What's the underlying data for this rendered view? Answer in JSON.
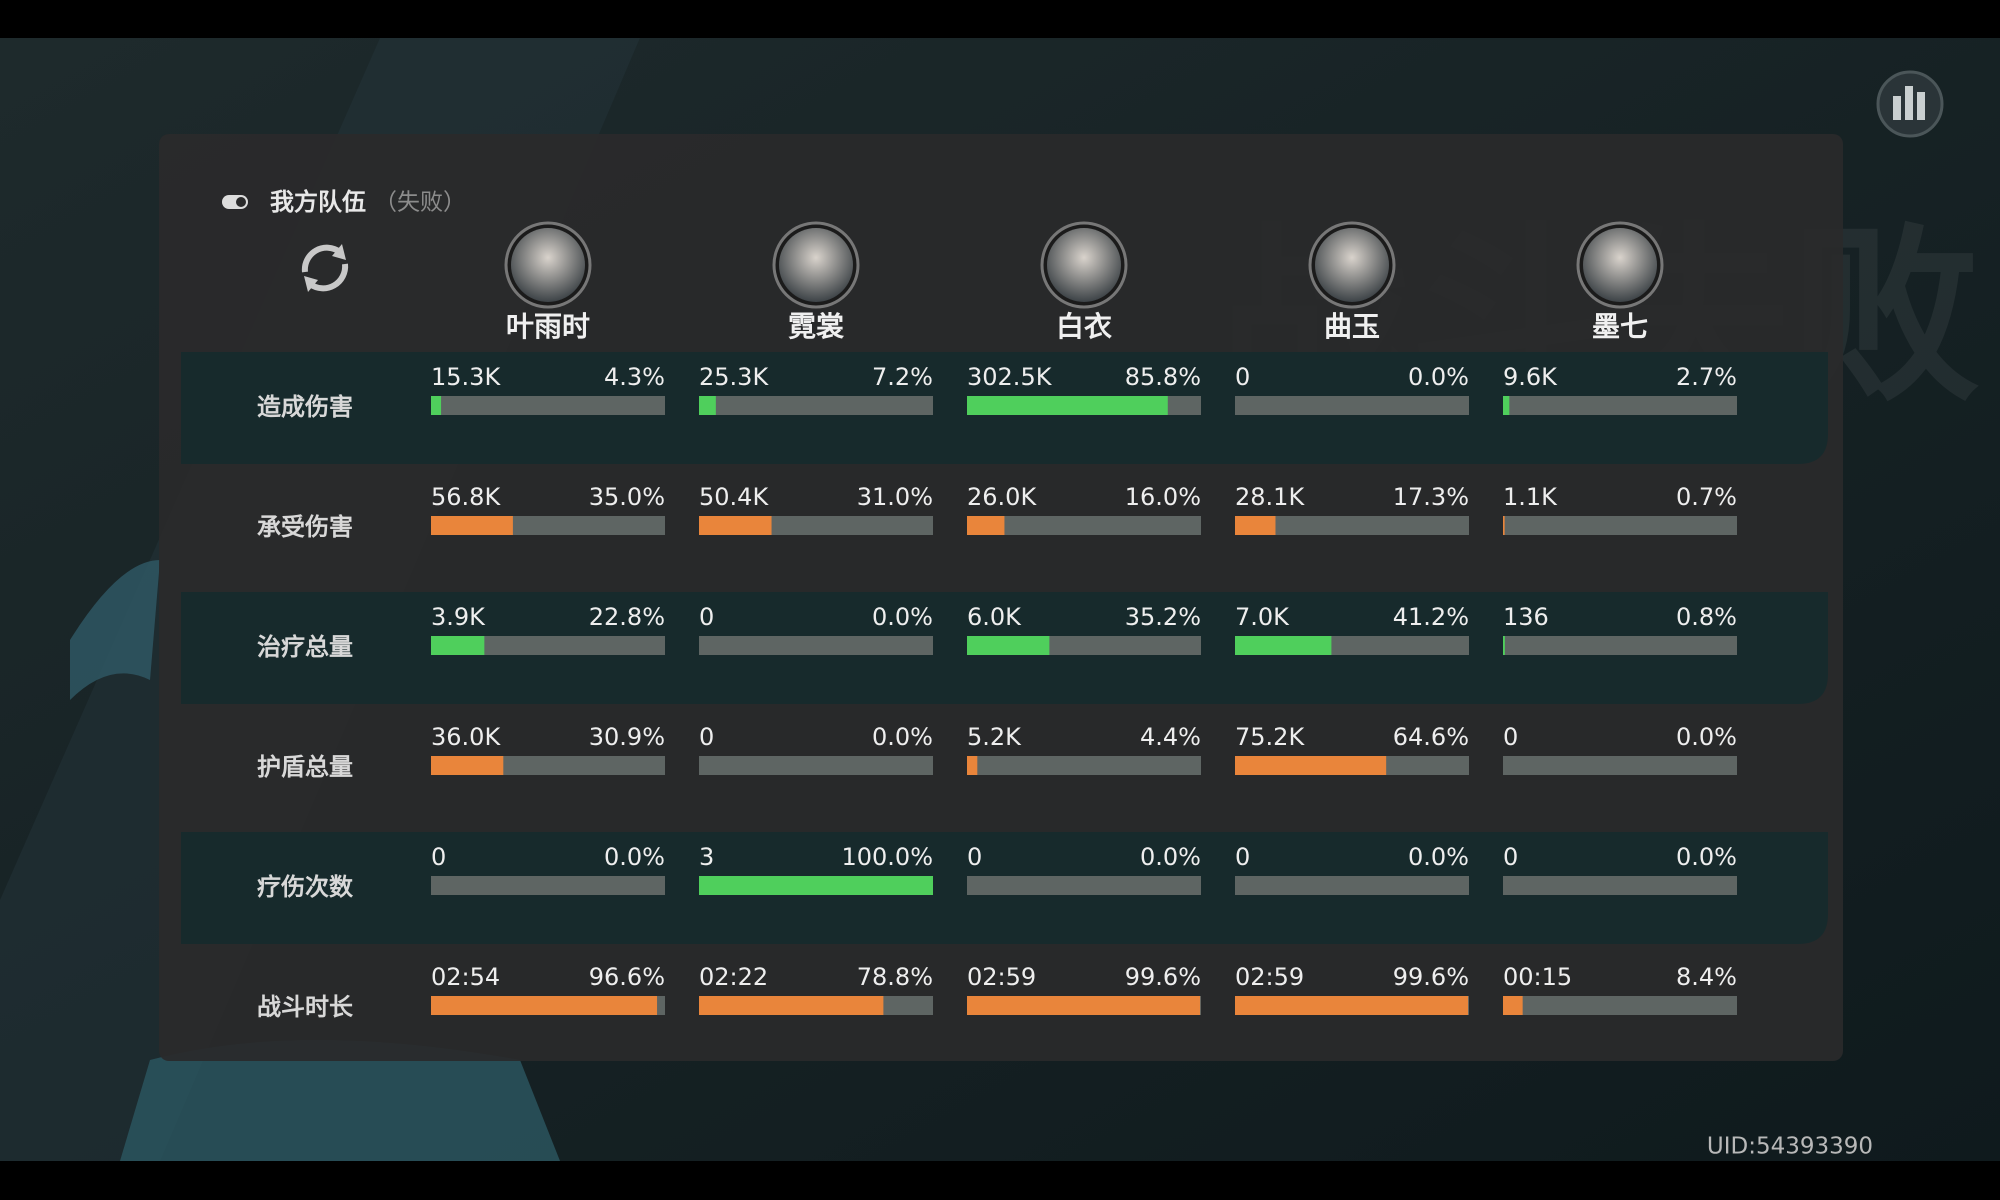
{
  "header": {
    "title": "我方队伍",
    "status": "（失败）"
  },
  "background_title": "战斗失败",
  "characters": [
    "叶雨时",
    "霓裳",
    "白衣",
    "曲玉",
    "墨七"
  ],
  "rows": [
    {
      "label": "造成伤害",
      "color": "#4fcf5c",
      "cells": [
        {
          "value": "15.3K",
          "share": {
            "value": 4.3,
            "label": "4.3%"
          }
        },
        {
          "value": "25.3K",
          "share": {
            "value": 7.2,
            "label": "7.2%"
          }
        },
        {
          "value": "302.5K",
          "share": {
            "value": 85.8,
            "label": "85.8%"
          }
        },
        {
          "value": "0",
          "share": {
            "value": 0,
            "label": "0.0%"
          }
        },
        {
          "value": "9.6K",
          "share": {
            "value": 2.7,
            "label": "2.7%"
          }
        }
      ]
    },
    {
      "label": "承受伤害",
      "color": "#e9853b",
      "cells": [
        {
          "value": "56.8K",
          "share": {
            "value": 35,
            "label": "35.0%"
          }
        },
        {
          "value": "50.4K",
          "share": {
            "value": 31,
            "label": "31.0%"
          }
        },
        {
          "value": "26.0K",
          "share": {
            "value": 16,
            "label": "16.0%"
          }
        },
        {
          "value": "28.1K",
          "share": {
            "value": 17.3,
            "label": "17.3%"
          }
        },
        {
          "value": "1.1K",
          "share": {
            "value": 0.7,
            "label": "0.7%"
          }
        }
      ]
    },
    {
      "label": "治疗总量",
      "color": "#4fcf5c",
      "cells": [
        {
          "value": "3.9K",
          "share": {
            "value": 22.8,
            "label": "22.8%"
          }
        },
        {
          "value": "0",
          "share": {
            "value": 0,
            "label": "0.0%"
          }
        },
        {
          "value": "6.0K",
          "share": {
            "value": 35.2,
            "label": "35.2%"
          }
        },
        {
          "value": "7.0K",
          "share": {
            "value": 41.2,
            "label": "41.2%"
          }
        },
        {
          "value": "136",
          "share": {
            "value": 0.8,
            "label": "0.8%"
          }
        }
      ]
    },
    {
      "label": "护盾总量",
      "color": "#e9853b",
      "cells": [
        {
          "value": "36.0K",
          "share": {
            "value": 30.9,
            "label": "30.9%"
          }
        },
        {
          "value": "0",
          "share": {
            "value": 0,
            "label": "0.0%"
          }
        },
        {
          "value": "5.2K",
          "share": {
            "value": 4.4,
            "label": "4.4%"
          }
        },
        {
          "value": "75.2K",
          "share": {
            "value": 64.6,
            "label": "64.6%"
          }
        },
        {
          "value": "0",
          "share": {
            "value": 0,
            "label": "0.0%"
          }
        }
      ]
    },
    {
      "label": "疗伤次数",
      "color": "#4fcf5c",
      "cells": [
        {
          "value": "0",
          "share": {
            "value": 0,
            "label": "0.0%"
          }
        },
        {
          "value": "3",
          "share": {
            "value": 100,
            "label": "100.0%"
          }
        },
        {
          "value": "0",
          "share": {
            "value": 0,
            "label": "0.0%"
          }
        },
        {
          "value": "0",
          "share": {
            "value": 0,
            "label": "0.0%"
          }
        },
        {
          "value": "0",
          "share": {
            "value": 0,
            "label": "0.0%"
          }
        }
      ]
    },
    {
      "label": "战斗时长",
      "color": "#e9853b",
      "cells": [
        {
          "value": "02:54",
          "share": {
            "value": 96.6,
            "label": "96.6%"
          }
        },
        {
          "value": "02:22",
          "share": {
            "value": 78.8,
            "label": "78.8%"
          }
        },
        {
          "value": "02:59",
          "share": {
            "value": 99.6,
            "label": "99.6%"
          }
        },
        {
          "value": "02:59",
          "share": {
            "value": 99.6,
            "label": "99.6%"
          }
        },
        {
          "value": "00:15",
          "share": {
            "value": 8.4,
            "label": "8.4%"
          }
        }
      ]
    }
  ],
  "footer": {
    "uid": "UID:54393390"
  }
}
